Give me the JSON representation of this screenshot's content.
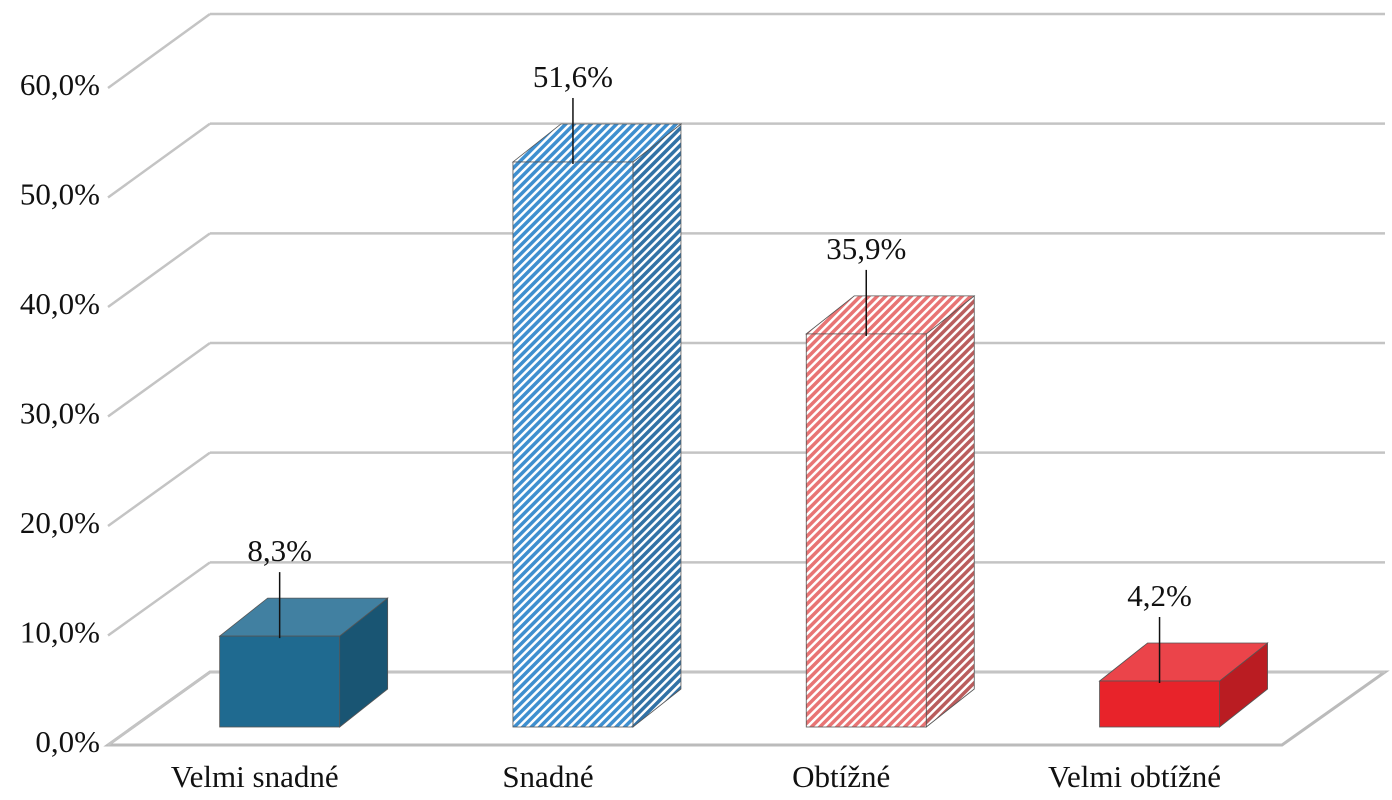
{
  "chart_data": {
    "type": "bar3d",
    "categories": [
      "Velmi snadné",
      "Snadné",
      "Obtížné",
      "Velmi obtížné"
    ],
    "values": [
      8.3,
      51.6,
      35.9,
      4.2
    ],
    "value_labels": [
      "8,3%",
      "51,6%",
      "35,9%",
      "4,2%"
    ],
    "colors": [
      "#1f6a90",
      "#3f8fcf",
      "#e87474",
      "#e8232a"
    ],
    "hatched": [
      false,
      true,
      true,
      false
    ],
    "ylim": [
      0,
      60
    ],
    "yticks": [
      {
        "value": 0,
        "label": "0,0%"
      },
      {
        "value": 10,
        "label": "10,0%"
      },
      {
        "value": 20,
        "label": "20,0%"
      },
      {
        "value": 30,
        "label": "30,0%"
      },
      {
        "value": 40,
        "label": "40,0%"
      },
      {
        "value": 50,
        "label": "50,0%"
      },
      {
        "value": 60,
        "label": "60,0%"
      }
    ],
    "grid": true
  }
}
